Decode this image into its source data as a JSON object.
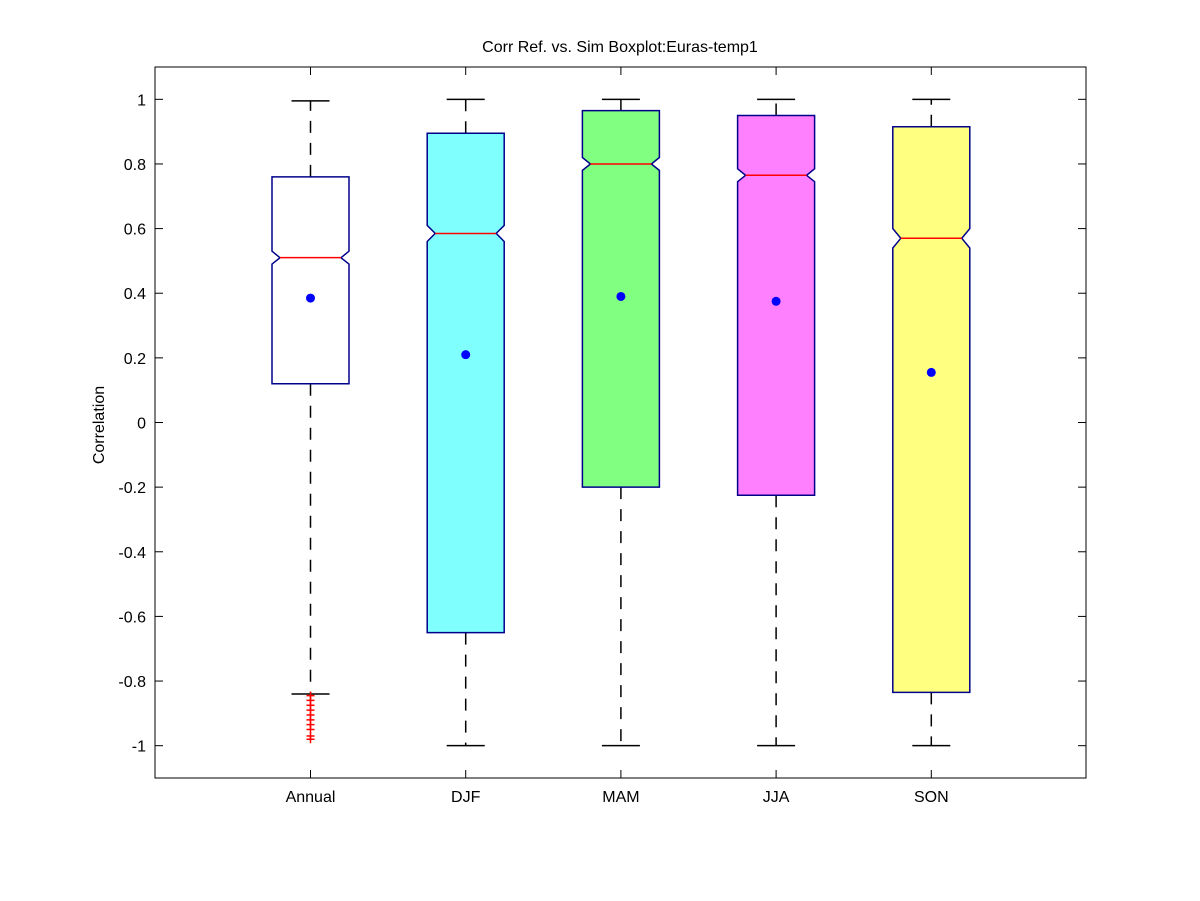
{
  "chart_data": {
    "type": "boxplot",
    "title": "Corr Ref. vs. Sim Boxplot:Euras-temp1",
    "xlabel": "",
    "ylabel": "Correlation",
    "ylim": [
      -1.1,
      1.1
    ],
    "yticks": [
      -1,
      -0.8,
      -0.6,
      -0.4,
      -0.2,
      0,
      0.2,
      0.4,
      0.6,
      0.8,
      1
    ],
    "ytick_labels": [
      "-1",
      "-0.8",
      "-0.6",
      "-0.4",
      "-0.2",
      "0",
      "0.2",
      "0.4",
      "0.6",
      "0.8",
      "1"
    ],
    "grid": false,
    "notched": true,
    "categories": [
      "Annual",
      "DJF",
      "MAM",
      "JJA",
      "SON"
    ],
    "boxes": [
      {
        "category": "Annual",
        "color": "#ffffff",
        "whisker_low": -0.84,
        "q1": 0.12,
        "median": 0.51,
        "q3": 0.76,
        "whisker_high": 0.995,
        "notch_low": 0.49,
        "notch_high": 0.53,
        "mean": 0.385,
        "outliers": [
          -0.845,
          -0.86,
          -0.875,
          -0.89,
          -0.905,
          -0.92,
          -0.935,
          -0.95,
          -0.97,
          -0.98
        ]
      },
      {
        "category": "DJF",
        "color": "#80ffff",
        "whisker_low": -1.0,
        "q1": -0.65,
        "median": 0.585,
        "q3": 0.895,
        "whisker_high": 1.0,
        "notch_low": 0.56,
        "notch_high": 0.61,
        "mean": 0.21,
        "outliers": []
      },
      {
        "category": "MAM",
        "color": "#80ff80",
        "whisker_low": -1.0,
        "q1": -0.2,
        "median": 0.8,
        "q3": 0.965,
        "whisker_high": 1.0,
        "notch_low": 0.78,
        "notch_high": 0.82,
        "mean": 0.39,
        "outliers": []
      },
      {
        "category": "JJA",
        "color": "#ff80ff",
        "whisker_low": -1.0,
        "q1": -0.225,
        "median": 0.765,
        "q3": 0.95,
        "whisker_high": 1.0,
        "notch_low": 0.745,
        "notch_high": 0.785,
        "mean": 0.375,
        "outliers": []
      },
      {
        "category": "SON",
        "color": "#ffff80",
        "whisker_low": -1.0,
        "q1": -0.835,
        "median": 0.57,
        "q3": 0.915,
        "whisker_high": 1.0,
        "notch_low": 0.54,
        "notch_high": 0.6,
        "mean": 0.155,
        "outliers": []
      }
    ],
    "colors": {
      "box_edge": "#00008b",
      "median": "#ff0000",
      "mean_marker": "#0000ff",
      "whisker": "#000000",
      "outlier": "#ff0000"
    }
  }
}
